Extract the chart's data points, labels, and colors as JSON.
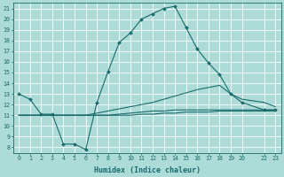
{
  "xlabel": "Humidex (Indice chaleur)",
  "bg_color": "#addbd8",
  "line_color": "#1a6b6b",
  "grid_color": "#ffffff",
  "xlim": [
    -0.5,
    23.5
  ],
  "ylim": [
    7.5,
    21.5
  ],
  "xtick_vals": [
    0,
    1,
    2,
    3,
    4,
    5,
    6,
    7,
    8,
    9,
    10,
    11,
    12,
    13,
    14,
    15,
    16,
    17,
    18,
    19,
    20,
    22,
    23
  ],
  "xtick_labels": [
    "0",
    "1",
    "2",
    "3",
    "4",
    "5",
    "6",
    "7",
    "8",
    "9",
    "10",
    "11",
    "12",
    "13",
    "14",
    "15",
    "16",
    "17",
    "18",
    "19",
    "20",
    "22",
    "23"
  ],
  "ytick_vals": [
    8,
    9,
    10,
    11,
    12,
    13,
    14,
    15,
    16,
    17,
    18,
    19,
    20,
    21
  ],
  "ytick_labels": [
    "8",
    "9",
    "10",
    "11",
    "12",
    "13",
    "14",
    "15",
    "16",
    "17",
    "18",
    "19",
    "20",
    "21"
  ],
  "line1_x": [
    0,
    1,
    2,
    3,
    4,
    5,
    6,
    7,
    8,
    9,
    10,
    11,
    12,
    13,
    14,
    15,
    16,
    17,
    18,
    19,
    20,
    22,
    23
  ],
  "line1_y": [
    13.0,
    12.5,
    11.1,
    11.1,
    8.3,
    8.3,
    7.8,
    12.2,
    15.1,
    17.8,
    18.7,
    20.0,
    20.5,
    21.0,
    21.2,
    19.2,
    17.2,
    15.9,
    14.8,
    13.0,
    12.2,
    11.5,
    11.5
  ],
  "line2_x": [
    0,
    1,
    2,
    3,
    4,
    5,
    6,
    7,
    8,
    9,
    10,
    11,
    12,
    13,
    14,
    15,
    16,
    17,
    18,
    19,
    20,
    22,
    23
  ],
  "line2_y": [
    11.0,
    11.0,
    11.0,
    11.0,
    11.0,
    11.0,
    11.0,
    11.2,
    11.4,
    11.6,
    11.8,
    12.0,
    12.2,
    12.5,
    12.8,
    13.1,
    13.4,
    13.6,
    13.8,
    13.0,
    12.5,
    12.2,
    11.8
  ],
  "line3_x": [
    0,
    1,
    2,
    3,
    4,
    5,
    6,
    7,
    8,
    9,
    10,
    11,
    12,
    13,
    14,
    15,
    16,
    17,
    18,
    19,
    20,
    22,
    23
  ],
  "line3_y": [
    11.0,
    11.0,
    11.0,
    11.0,
    11.0,
    11.0,
    11.0,
    11.0,
    11.0,
    11.1,
    11.2,
    11.3,
    11.4,
    11.4,
    11.5,
    11.5,
    11.5,
    11.5,
    11.5,
    11.5,
    11.5,
    11.5,
    11.5
  ],
  "line4_x": [
    0,
    1,
    2,
    3,
    4,
    5,
    6,
    7,
    8,
    9,
    10,
    11,
    12,
    13,
    14,
    15,
    16,
    17,
    18,
    19,
    20,
    22,
    23
  ],
  "line4_y": [
    11.0,
    11.0,
    11.0,
    11.0,
    11.0,
    11.0,
    11.0,
    11.0,
    11.0,
    11.0,
    11.0,
    11.1,
    11.1,
    11.2,
    11.2,
    11.3,
    11.3,
    11.3,
    11.4,
    11.4,
    11.4,
    11.4,
    11.4
  ],
  "line1_marker_x": [
    0,
    1,
    2,
    3,
    4,
    5,
    6,
    7,
    8,
    9,
    10,
    11,
    12,
    13,
    14,
    15,
    16,
    17,
    18,
    19,
    20,
    22,
    23
  ],
  "line1_marker_y": [
    13.0,
    12.5,
    11.1,
    11.1,
    8.3,
    8.3,
    7.8,
    12.2,
    15.1,
    17.8,
    18.7,
    20.0,
    20.5,
    21.0,
    21.2,
    19.2,
    17.2,
    15.9,
    14.8,
    13.0,
    12.2,
    11.5,
    11.5
  ],
  "ylabel_fontsize": 5.5,
  "xlabel_fontsize": 6.0,
  "tick_fontsize": 4.8,
  "linewidth": 0.8,
  "markersize": 2.0
}
